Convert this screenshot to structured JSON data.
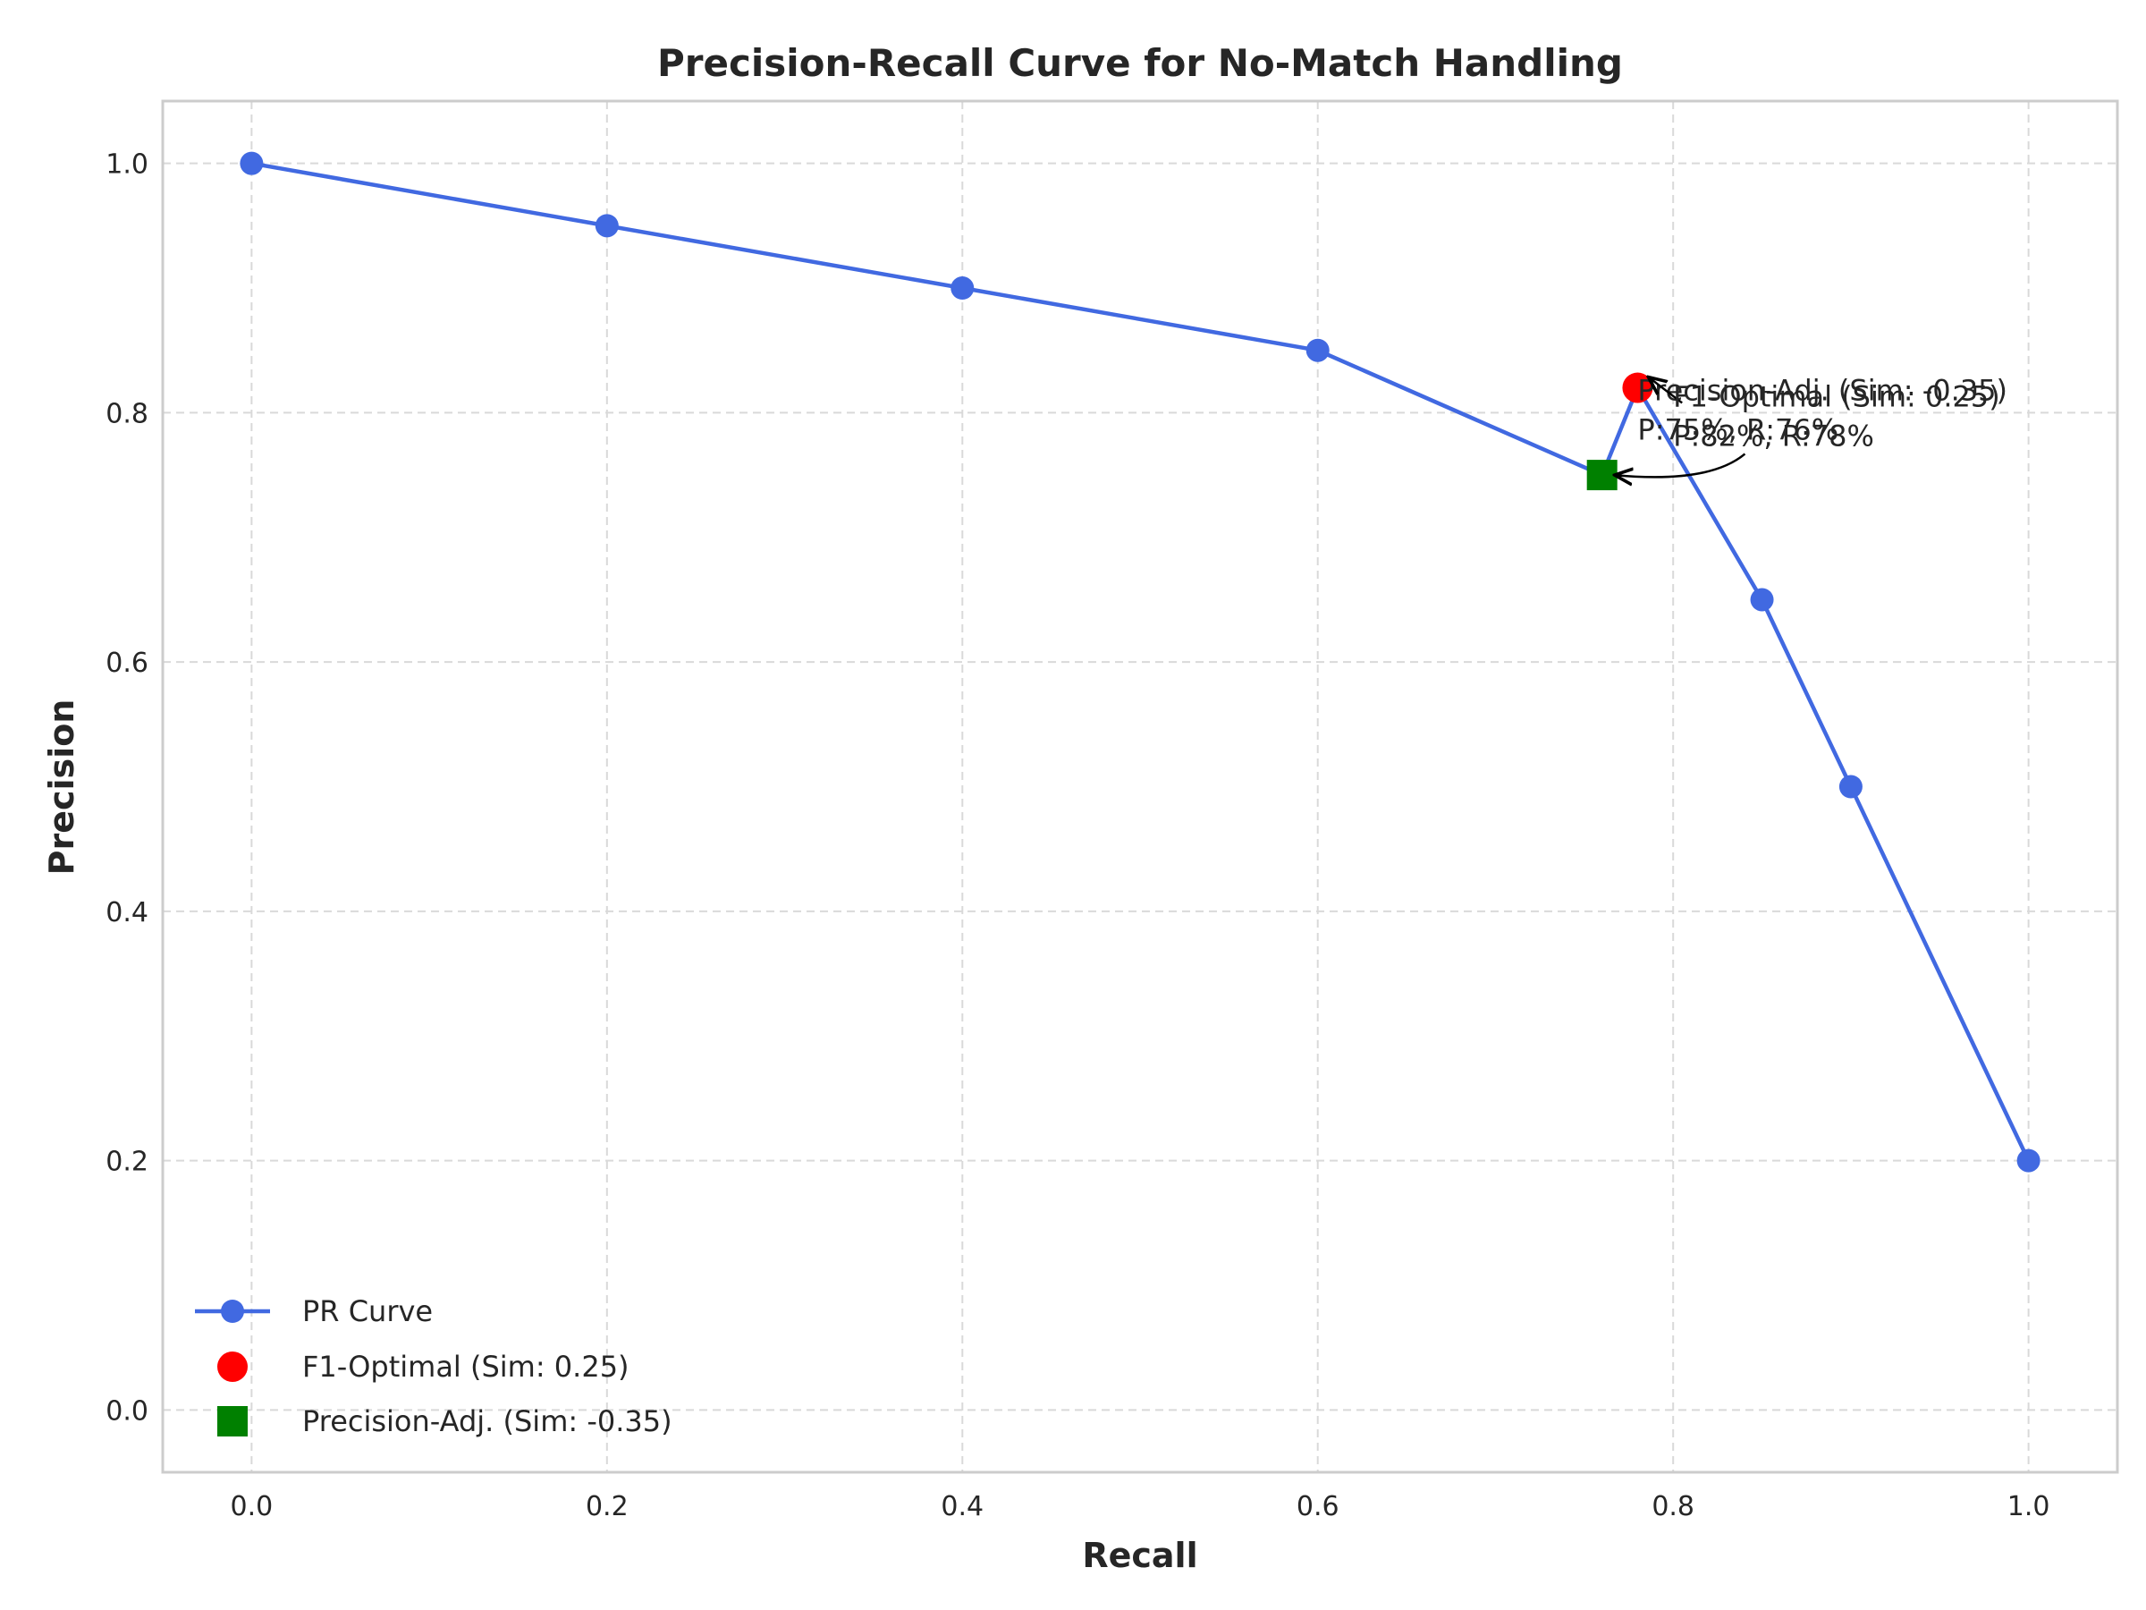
{
  "chart_data": {
    "type": "line",
    "title": "Precision-Recall Curve for No-Match Handling",
    "xlabel": "Recall",
    "ylabel": "Precision",
    "xlim": [
      -0.05,
      1.05
    ],
    "ylim": [
      -0.05,
      1.05
    ],
    "xticks": [
      0.0,
      0.2,
      0.4,
      0.6,
      0.8,
      1.0
    ],
    "xtick_labels": [
      "0.0",
      "0.2",
      "0.4",
      "0.6",
      "0.8",
      "1.0"
    ],
    "yticks": [
      0.0,
      0.2,
      0.4,
      0.6,
      0.8,
      1.0
    ],
    "ytick_labels": [
      "0.0",
      "0.2",
      "0.4",
      "0.6",
      "0.8",
      "1.0"
    ],
    "grid": true,
    "legend_position": "lower-left",
    "series": [
      {
        "name": "PR Curve",
        "color": "#4169e1",
        "marker": "circle",
        "x": [
          0.0,
          0.2,
          0.4,
          0.6,
          0.76,
          0.78,
          0.85,
          0.9,
          1.0
        ],
        "y": [
          1.0,
          0.95,
          0.9,
          0.85,
          0.75,
          0.82,
          0.65,
          0.5,
          0.2
        ],
        "marker_visible": [
          true,
          true,
          true,
          true,
          false,
          false,
          true,
          true,
          true
        ]
      },
      {
        "name": "F1-Optimal (Sim: 0.25)",
        "color": "#ff0000",
        "marker": "circle",
        "x": [
          0.78
        ],
        "y": [
          0.82
        ]
      },
      {
        "name": "Precision-Adj. (Sim: -0.35)",
        "color": "#008000",
        "marker": "square",
        "x": [
          0.76
        ],
        "y": [
          0.75
        ]
      }
    ],
    "annotations": [
      {
        "lines": [
          "Precision-Adj. (Sim: -0.35)",
          "P:75%, R:76%"
        ],
        "target": [
          0.76,
          0.75
        ],
        "text_at": [
          0.78,
          0.81
        ],
        "arrow_style": "curved"
      },
      {
        "lines": [
          "F1-Optimal (Sim: 0.25)",
          "P:82%, R:78%"
        ],
        "target": [
          0.78,
          0.82
        ],
        "text_at": [
          0.8,
          0.805
        ],
        "arrow_style": "straight"
      }
    ]
  }
}
